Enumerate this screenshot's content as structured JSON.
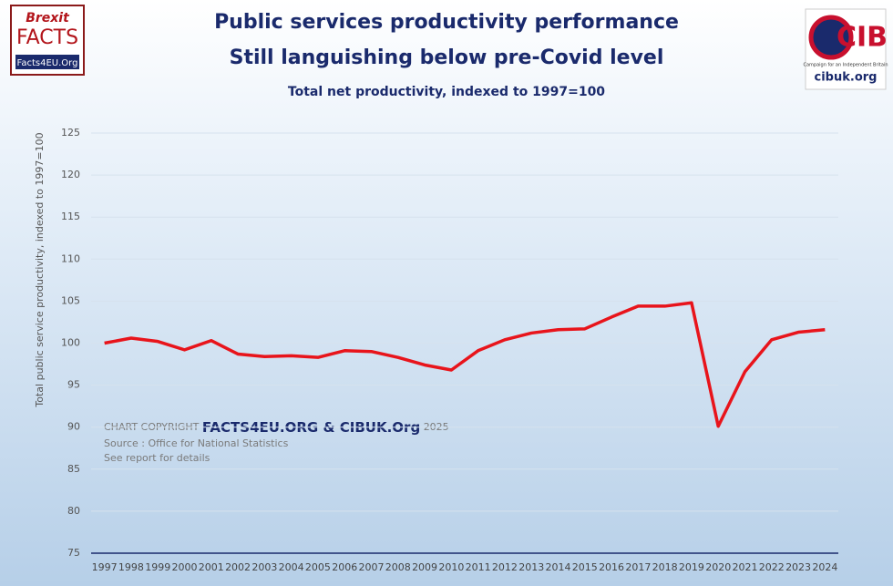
{
  "chart_data": {
    "type": "line",
    "title": [
      "Public services productivity performance",
      "Still languishing below pre-Covid level"
    ],
    "subtitle": "Total net productivity, indexed to 1997=100",
    "y_label": "Total public service productivity, indexed to 1997=100",
    "categories": [
      "1997",
      "1998",
      "1999",
      "2000",
      "2001",
      "2002",
      "2003",
      "2004",
      "2005",
      "2006",
      "2007",
      "2008",
      "2009",
      "2010",
      "2011",
      "2012",
      "2013",
      "2014",
      "2015",
      "2016",
      "2017",
      "2018",
      "2019",
      "2020",
      "2021",
      "2022",
      "2023",
      "2024"
    ],
    "values": [
      100.0,
      100.6,
      100.2,
      99.2,
      100.3,
      98.7,
      98.4,
      98.5,
      98.3,
      99.1,
      99.0,
      98.3,
      97.4,
      96.8,
      99.1,
      100.4,
      101.2,
      101.6,
      101.7,
      103.1,
      104.4,
      104.4,
      104.8,
      90.1,
      96.6,
      100.4,
      101.3,
      101.6
    ],
    "color": "#e8141b",
    "ylim": [
      75,
      125
    ],
    "yticks": [
      75,
      80,
      85,
      90,
      95,
      100,
      105,
      110,
      115,
      120,
      125
    ],
    "grid": true,
    "annotations": [
      "CHART COPYRIGHT",
      "FACTS4EU.ORG & CIBUK.Org",
      "2025",
      "Source : Office for National Statistics",
      "See report for details"
    ]
  },
  "branding": {
    "left": [
      "Brexit",
      "FACTS",
      "Facts4EU.Org"
    ],
    "right": [
      "CIB",
      "Campaign for an Independent Britain",
      "cibuk.org"
    ]
  }
}
